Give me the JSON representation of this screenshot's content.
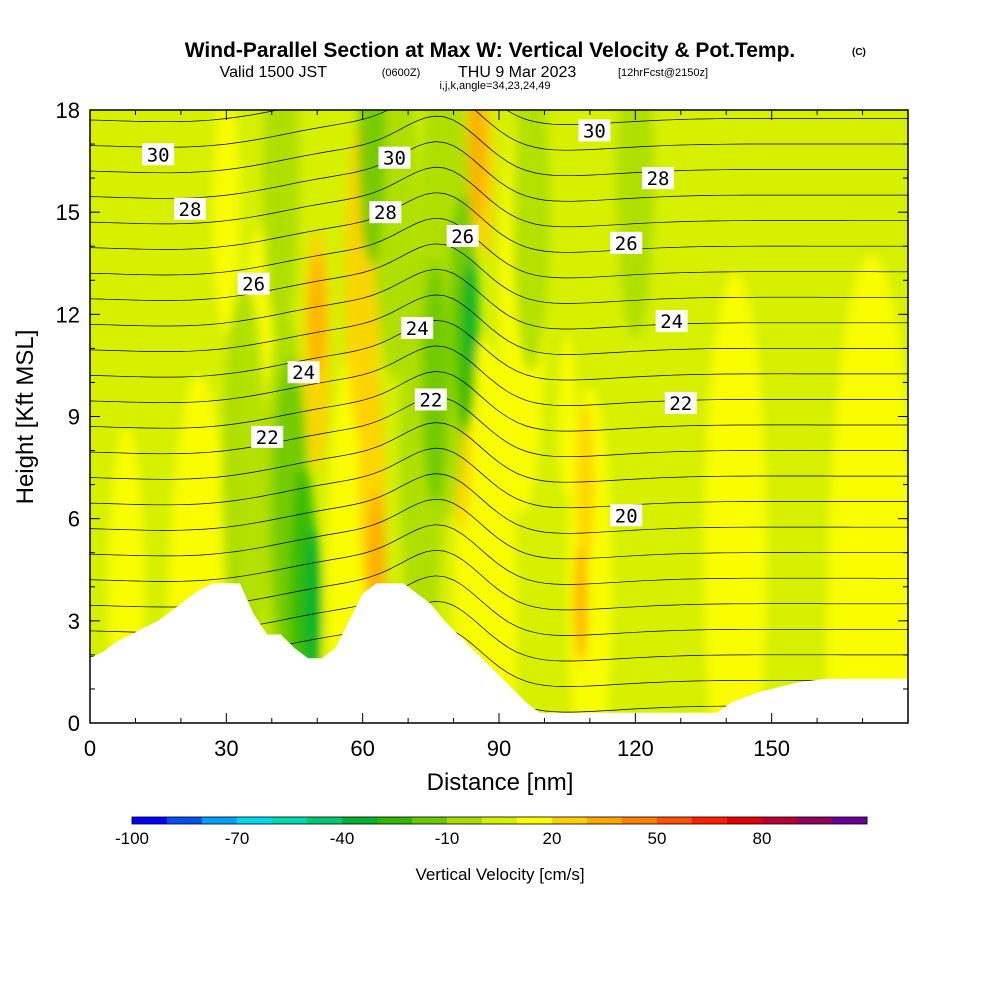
{
  "title": {
    "main": "Wind-Parallel Section at Max W: Vertical Velocity & Pot.Temp.",
    "copyright": "(C)",
    "valid_prefix": "Valid 1500 JST",
    "valid_utc": "(0600Z)",
    "valid_date": "THU 9 Mar 2023",
    "forecast": "[12hrFcst@2150z]",
    "indices": "i,j,k,angle=34,23,24,49"
  },
  "chart_data": {
    "type": "heatmap",
    "title": "Wind-Parallel Section at Max W: Vertical Velocity & Pot.Temp.",
    "xlabel": "Distance [nm]",
    "ylabel": "Height [Kft MSL]",
    "xlim": [
      0,
      180
    ],
    "ylim": [
      0,
      18
    ],
    "x_ticks": [
      0,
      30,
      60,
      90,
      120,
      150
    ],
    "y_ticks": [
      0,
      3,
      6,
      9,
      12,
      15,
      18
    ],
    "colorbar": {
      "label": "Vertical Velocity [cm/s]",
      "ticks": [
        -100,
        -70,
        -40,
        -10,
        20,
        50,
        80
      ],
      "colors": [
        "#0000ff",
        "#0050f0",
        "#00a0ff",
        "#00d8f0",
        "#00d8b0",
        "#00c870",
        "#00b030",
        "#30b800",
        "#68c800",
        "#a8dc00",
        "#d8f000",
        "#ffff00",
        "#ffd000",
        "#ffa800",
        "#ff8000",
        "#ff5000",
        "#ff2000",
        "#e00000",
        "#b80030",
        "#900060",
        "#680098"
      ]
    },
    "theta_contours": {
      "units": "pot. temp. (C)",
      "labeled_values": [
        20,
        22,
        24,
        26,
        28,
        30
      ],
      "labels": [
        {
          "text": "30",
          "x": 15,
          "y": 16.7
        },
        {
          "text": "30",
          "x": 67,
          "y": 16.6
        },
        {
          "text": "30",
          "x": 111,
          "y": 17.4
        },
        {
          "text": "28",
          "x": 22,
          "y": 15.1
        },
        {
          "text": "28",
          "x": 65,
          "y": 15.0
        },
        {
          "text": "28",
          "x": 125,
          "y": 16.0
        },
        {
          "text": "26",
          "x": 36,
          "y": 12.9
        },
        {
          "text": "26",
          "x": 82,
          "y": 14.3
        },
        {
          "text": "26",
          "x": 118,
          "y": 14.1
        },
        {
          "text": "24",
          "x": 47,
          "y": 10.3
        },
        {
          "text": "24",
          "x": 72,
          "y": 11.6
        },
        {
          "text": "24",
          "x": 128,
          "y": 11.8
        },
        {
          "text": "22",
          "x": 39,
          "y": 8.4
        },
        {
          "text": "22",
          "x": 75,
          "y": 9.5
        },
        {
          "text": "22",
          "x": 130,
          "y": 9.4
        },
        {
          "text": "20",
          "x": 118,
          "y": 6.1
        }
      ]
    },
    "terrain": [
      {
        "x": 0,
        "h": 1.9
      },
      {
        "x": 3,
        "h": 2.1
      },
      {
        "x": 6,
        "h": 2.4
      },
      {
        "x": 9,
        "h": 2.6
      },
      {
        "x": 12,
        "h": 2.8
      },
      {
        "x": 15,
        "h": 3.0
      },
      {
        "x": 18,
        "h": 3.3
      },
      {
        "x": 21,
        "h": 3.6
      },
      {
        "x": 24,
        "h": 3.9
      },
      {
        "x": 27,
        "h": 4.1
      },
      {
        "x": 30,
        "h": 4.1
      },
      {
        "x": 33,
        "h": 4.1
      },
      {
        "x": 36,
        "h": 3.2
      },
      {
        "x": 39,
        "h": 2.6
      },
      {
        "x": 42,
        "h": 2.6
      },
      {
        "x": 45,
        "h": 2.2
      },
      {
        "x": 48,
        "h": 1.9
      },
      {
        "x": 51,
        "h": 1.9
      },
      {
        "x": 54,
        "h": 2.2
      },
      {
        "x": 57,
        "h": 3.0
      },
      {
        "x": 60,
        "h": 3.8
      },
      {
        "x": 63,
        "h": 4.1
      },
      {
        "x": 66,
        "h": 4.1
      },
      {
        "x": 69,
        "h": 4.1
      },
      {
        "x": 72,
        "h": 3.8
      },
      {
        "x": 75,
        "h": 3.5
      },
      {
        "x": 78,
        "h": 3.0
      },
      {
        "x": 81,
        "h": 2.6
      },
      {
        "x": 84,
        "h": 2.2
      },
      {
        "x": 87,
        "h": 1.8
      },
      {
        "x": 90,
        "h": 1.4
      },
      {
        "x": 93,
        "h": 1.0
      },
      {
        "x": 96,
        "h": 0.6
      },
      {
        "x": 99,
        "h": 0.3
      },
      {
        "x": 102,
        "h": 0.3
      },
      {
        "x": 110,
        "h": 0.3
      },
      {
        "x": 120,
        "h": 0.3
      },
      {
        "x": 130,
        "h": 0.3
      },
      {
        "x": 138,
        "h": 0.3
      },
      {
        "x": 141,
        "h": 0.6
      },
      {
        "x": 147,
        "h": 0.9
      },
      {
        "x": 156,
        "h": 1.2
      },
      {
        "x": 162,
        "h": 1.3
      },
      {
        "x": 170,
        "h": 1.3
      },
      {
        "x": 180,
        "h": 1.3
      }
    ]
  }
}
